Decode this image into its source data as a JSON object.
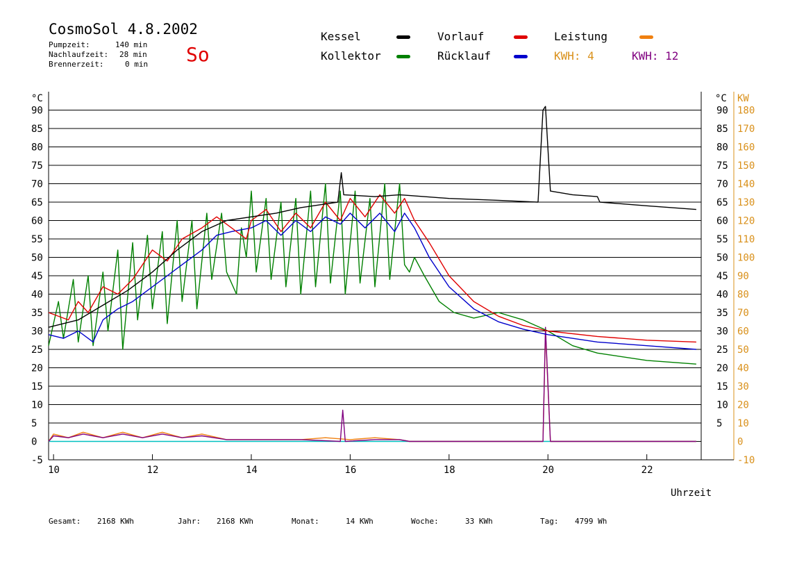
{
  "header": {
    "title": "CosmoSol 4.8.2002",
    "day": "So",
    "stats": [
      {
        "label": "Pumpzeit:",
        "value": "140 min"
      },
      {
        "label": "Nachlaufzeit:",
        "value": "28 min"
      },
      {
        "label": "Brennerzeit:",
        "value": "0 min"
      }
    ]
  },
  "legend": {
    "kessel": "Kessel",
    "vorlauf": "Vorlauf",
    "leistung": "Leistung",
    "kollektor": "Kollektor",
    "ruecklauf": "Rücklauf",
    "kwh_orange": "KWH: 4",
    "kwh_purple": "KWH: 12"
  },
  "colors": {
    "kessel": "#000000",
    "vorlauf": "#e00000",
    "ruecklauf": "#0000cc",
    "kollektor": "#008000",
    "leistung": "#f08010",
    "leistung2": "#800080",
    "baseline": "#00c0c0",
    "right_axis": "#d9901a"
  },
  "footer": [
    {
      "label": "Gesamt:",
      "value": "2168 KWh"
    },
    {
      "label": "Jahr:",
      "value": "2168 KWh"
    },
    {
      "label": "Monat:",
      "value": "14 KWh"
    },
    {
      "label": "Woche:",
      "value": "33 KWh"
    },
    {
      "label": "Tag:",
      "value": "4799 Wh"
    }
  ],
  "chart_data": {
    "type": "line",
    "xlabel": "Uhrzeit",
    "ylabel_left": "°C",
    "ylabel_right_1": "°C",
    "ylabel_right_2": "KW",
    "xlim": [
      9.9,
      23.1
    ],
    "ylim": [
      -5,
      95
    ],
    "ylim_kw": [
      -10,
      190
    ],
    "x_ticks": [
      "10",
      "12",
      "14",
      "16",
      "18",
      "20",
      "22"
    ],
    "y_ticks_left": [
      "-5",
      "0",
      "5",
      "10",
      "15",
      "20",
      "25",
      "30",
      "35",
      "40",
      "45",
      "50",
      "55",
      "60",
      "65",
      "70",
      "75",
      "80",
      "85",
      "90"
    ],
    "y_ticks_right_c": [
      "5",
      "10",
      "15",
      "20",
      "25",
      "30",
      "35",
      "40",
      "45",
      "50",
      "55",
      "60",
      "65",
      "70",
      "75",
      "80",
      "85",
      "90"
    ],
    "y_ticks_right_kw": [
      "-10",
      "0",
      "10",
      "20",
      "30",
      "40",
      "50",
      "60",
      "70",
      "80",
      "90",
      "100",
      "110",
      "120",
      "130",
      "140",
      "150",
      "160",
      "170",
      "180"
    ],
    "grid": true,
    "series": [
      {
        "name": "Kessel",
        "color": "#000000",
        "points": [
          [
            9.9,
            31
          ],
          [
            10.5,
            33
          ],
          [
            11,
            37
          ],
          [
            11.5,
            41
          ],
          [
            12,
            46
          ],
          [
            12.5,
            52
          ],
          [
            13,
            57
          ],
          [
            13.5,
            60
          ],
          [
            14,
            61
          ],
          [
            14.5,
            62
          ],
          [
            15,
            63.5
          ],
          [
            15.5,
            64.5
          ],
          [
            15.75,
            65
          ],
          [
            15.82,
            73
          ],
          [
            15.87,
            67
          ],
          [
            16.5,
            66.5
          ],
          [
            17,
            67
          ],
          [
            17.5,
            66.5
          ],
          [
            18,
            66
          ],
          [
            19,
            65.5
          ],
          [
            19.8,
            65
          ],
          [
            19.9,
            90
          ],
          [
            19.95,
            91
          ],
          [
            20.05,
            68
          ],
          [
            20.5,
            67
          ],
          [
            21,
            66.5
          ],
          [
            21.05,
            65
          ],
          [
            22,
            64
          ],
          [
            23,
            63
          ]
        ]
      },
      {
        "name": "Vorlauf",
        "color": "#e00000",
        "points": [
          [
            9.9,
            35
          ],
          [
            10.3,
            33
          ],
          [
            10.5,
            38
          ],
          [
            10.7,
            35
          ],
          [
            11,
            42
          ],
          [
            11.3,
            40
          ],
          [
            11.6,
            44
          ],
          [
            12,
            52
          ],
          [
            12.3,
            49
          ],
          [
            12.6,
            55
          ],
          [
            13,
            58
          ],
          [
            13.3,
            61
          ],
          [
            13.6,
            58
          ],
          [
            13.9,
            55
          ],
          [
            14,
            60
          ],
          [
            14.3,
            63
          ],
          [
            14.6,
            57
          ],
          [
            14.9,
            62
          ],
          [
            15.2,
            58
          ],
          [
            15.5,
            65
          ],
          [
            15.8,
            60
          ],
          [
            16,
            66
          ],
          [
            16.3,
            61
          ],
          [
            16.6,
            67
          ],
          [
            16.9,
            62
          ],
          [
            17.1,
            66
          ],
          [
            17.3,
            60
          ],
          [
            17.6,
            54
          ],
          [
            18,
            45
          ],
          [
            18.5,
            38
          ],
          [
            19,
            34
          ],
          [
            19.5,
            31.5
          ],
          [
            20,
            30
          ],
          [
            21,
            28.5
          ],
          [
            22,
            27.5
          ],
          [
            23,
            27
          ]
        ]
      },
      {
        "name": "Rücklauf",
        "color": "#0000cc",
        "points": [
          [
            9.9,
            29
          ],
          [
            10.2,
            28
          ],
          [
            10.5,
            30
          ],
          [
            10.8,
            27
          ],
          [
            11,
            33
          ],
          [
            11.3,
            36
          ],
          [
            11.6,
            38
          ],
          [
            12,
            42
          ],
          [
            12.3,
            45
          ],
          [
            12.6,
            48
          ],
          [
            13,
            52
          ],
          [
            13.3,
            56
          ],
          [
            13.6,
            57
          ],
          [
            14,
            58
          ],
          [
            14.3,
            60
          ],
          [
            14.6,
            56
          ],
          [
            14.9,
            60
          ],
          [
            15.2,
            57
          ],
          [
            15.5,
            61
          ],
          [
            15.8,
            59
          ],
          [
            16,
            62
          ],
          [
            16.3,
            58
          ],
          [
            16.6,
            62
          ],
          [
            16.9,
            57
          ],
          [
            17.1,
            62
          ],
          [
            17.3,
            58
          ],
          [
            17.6,
            50
          ],
          [
            18,
            42
          ],
          [
            18.5,
            36
          ],
          [
            19,
            32.5
          ],
          [
            19.5,
            30.5
          ],
          [
            20,
            29
          ],
          [
            21,
            27
          ],
          [
            22,
            26
          ],
          [
            23,
            25
          ]
        ]
      },
      {
        "name": "Kollektor",
        "color": "#008000",
        "points": [
          [
            9.9,
            26
          ],
          [
            10.1,
            38
          ],
          [
            10.2,
            28
          ],
          [
            10.4,
            44
          ],
          [
            10.5,
            27
          ],
          [
            10.7,
            45
          ],
          [
            10.8,
            26
          ],
          [
            11,
            46
          ],
          [
            11.1,
            30
          ],
          [
            11.3,
            52
          ],
          [
            11.4,
            25
          ],
          [
            11.6,
            54
          ],
          [
            11.7,
            33
          ],
          [
            11.9,
            56
          ],
          [
            12,
            36
          ],
          [
            12.2,
            57
          ],
          [
            12.3,
            32
          ],
          [
            12.5,
            60
          ],
          [
            12.6,
            38
          ],
          [
            12.8,
            60
          ],
          [
            12.9,
            36
          ],
          [
            13.1,
            62
          ],
          [
            13.2,
            44
          ],
          [
            13.4,
            62
          ],
          [
            13.5,
            46
          ],
          [
            13.7,
            40
          ],
          [
            13.8,
            58
          ],
          [
            13.9,
            50
          ],
          [
            14,
            68
          ],
          [
            14.1,
            46
          ],
          [
            14.3,
            66
          ],
          [
            14.4,
            44
          ],
          [
            14.6,
            65
          ],
          [
            14.7,
            42
          ],
          [
            14.9,
            66
          ],
          [
            15,
            40
          ],
          [
            15.2,
            68
          ],
          [
            15.3,
            42
          ],
          [
            15.5,
            70
          ],
          [
            15.6,
            43
          ],
          [
            15.8,
            68
          ],
          [
            15.9,
            40
          ],
          [
            16.1,
            68
          ],
          [
            16.2,
            43
          ],
          [
            16.4,
            66
          ],
          [
            16.5,
            42
          ],
          [
            16.7,
            70
          ],
          [
            16.8,
            44
          ],
          [
            17,
            70
          ],
          [
            17.1,
            48
          ],
          [
            17.2,
            46
          ],
          [
            17.3,
            50
          ],
          [
            17.5,
            45
          ],
          [
            17.8,
            38
          ],
          [
            18.1,
            35
          ],
          [
            18.5,
            33.5
          ],
          [
            19,
            35
          ],
          [
            19.5,
            33
          ],
          [
            20,
            30
          ],
          [
            20.5,
            26
          ],
          [
            21,
            24
          ],
          [
            22,
            22
          ],
          [
            23,
            21
          ]
        ]
      },
      {
        "name": "Leistung",
        "color": "#f08010",
        "points": [
          [
            9.9,
            0
          ],
          [
            10,
            2
          ],
          [
            10.3,
            1
          ],
          [
            10.6,
            2.5
          ],
          [
            11,
            1
          ],
          [
            11.4,
            2.5
          ],
          [
            11.8,
            1
          ],
          [
            12.2,
            2.5
          ],
          [
            12.6,
            1
          ],
          [
            13,
            2
          ],
          [
            13.5,
            0.5
          ],
          [
            14,
            0.5
          ],
          [
            15,
            0.5
          ],
          [
            15.5,
            1
          ],
          [
            16,
            0.5
          ],
          [
            16.5,
            1
          ],
          [
            17,
            0.5
          ],
          [
            17.2,
            0
          ],
          [
            19.9,
            0
          ],
          [
            19.95,
            30
          ],
          [
            20.05,
            0
          ],
          [
            23,
            0
          ]
        ]
      },
      {
        "name": "",
        "color": "#800080",
        "points": [
          [
            9.9,
            0
          ],
          [
            10,
            1.5
          ],
          [
            10.3,
            1
          ],
          [
            10.6,
            2
          ],
          [
            11,
            1
          ],
          [
            11.4,
            2
          ],
          [
            11.8,
            1
          ],
          [
            12.2,
            2
          ],
          [
            12.6,
            1
          ],
          [
            13,
            1.5
          ],
          [
            13.5,
            0.5
          ],
          [
            14,
            0.5
          ],
          [
            15,
            0.5
          ],
          [
            15.8,
            0
          ],
          [
            15.85,
            8.5
          ],
          [
            15.9,
            0
          ],
          [
            16.5,
            0.5
          ],
          [
            17,
            0.5
          ],
          [
            17.2,
            0
          ],
          [
            19.9,
            0
          ],
          [
            19.95,
            31
          ],
          [
            20.05,
            0
          ],
          [
            23,
            0
          ]
        ]
      },
      {
        "name": "",
        "color": "#00c0c0",
        "points": [
          [
            9.9,
            0
          ],
          [
            23,
            0
          ]
        ]
      }
    ]
  }
}
